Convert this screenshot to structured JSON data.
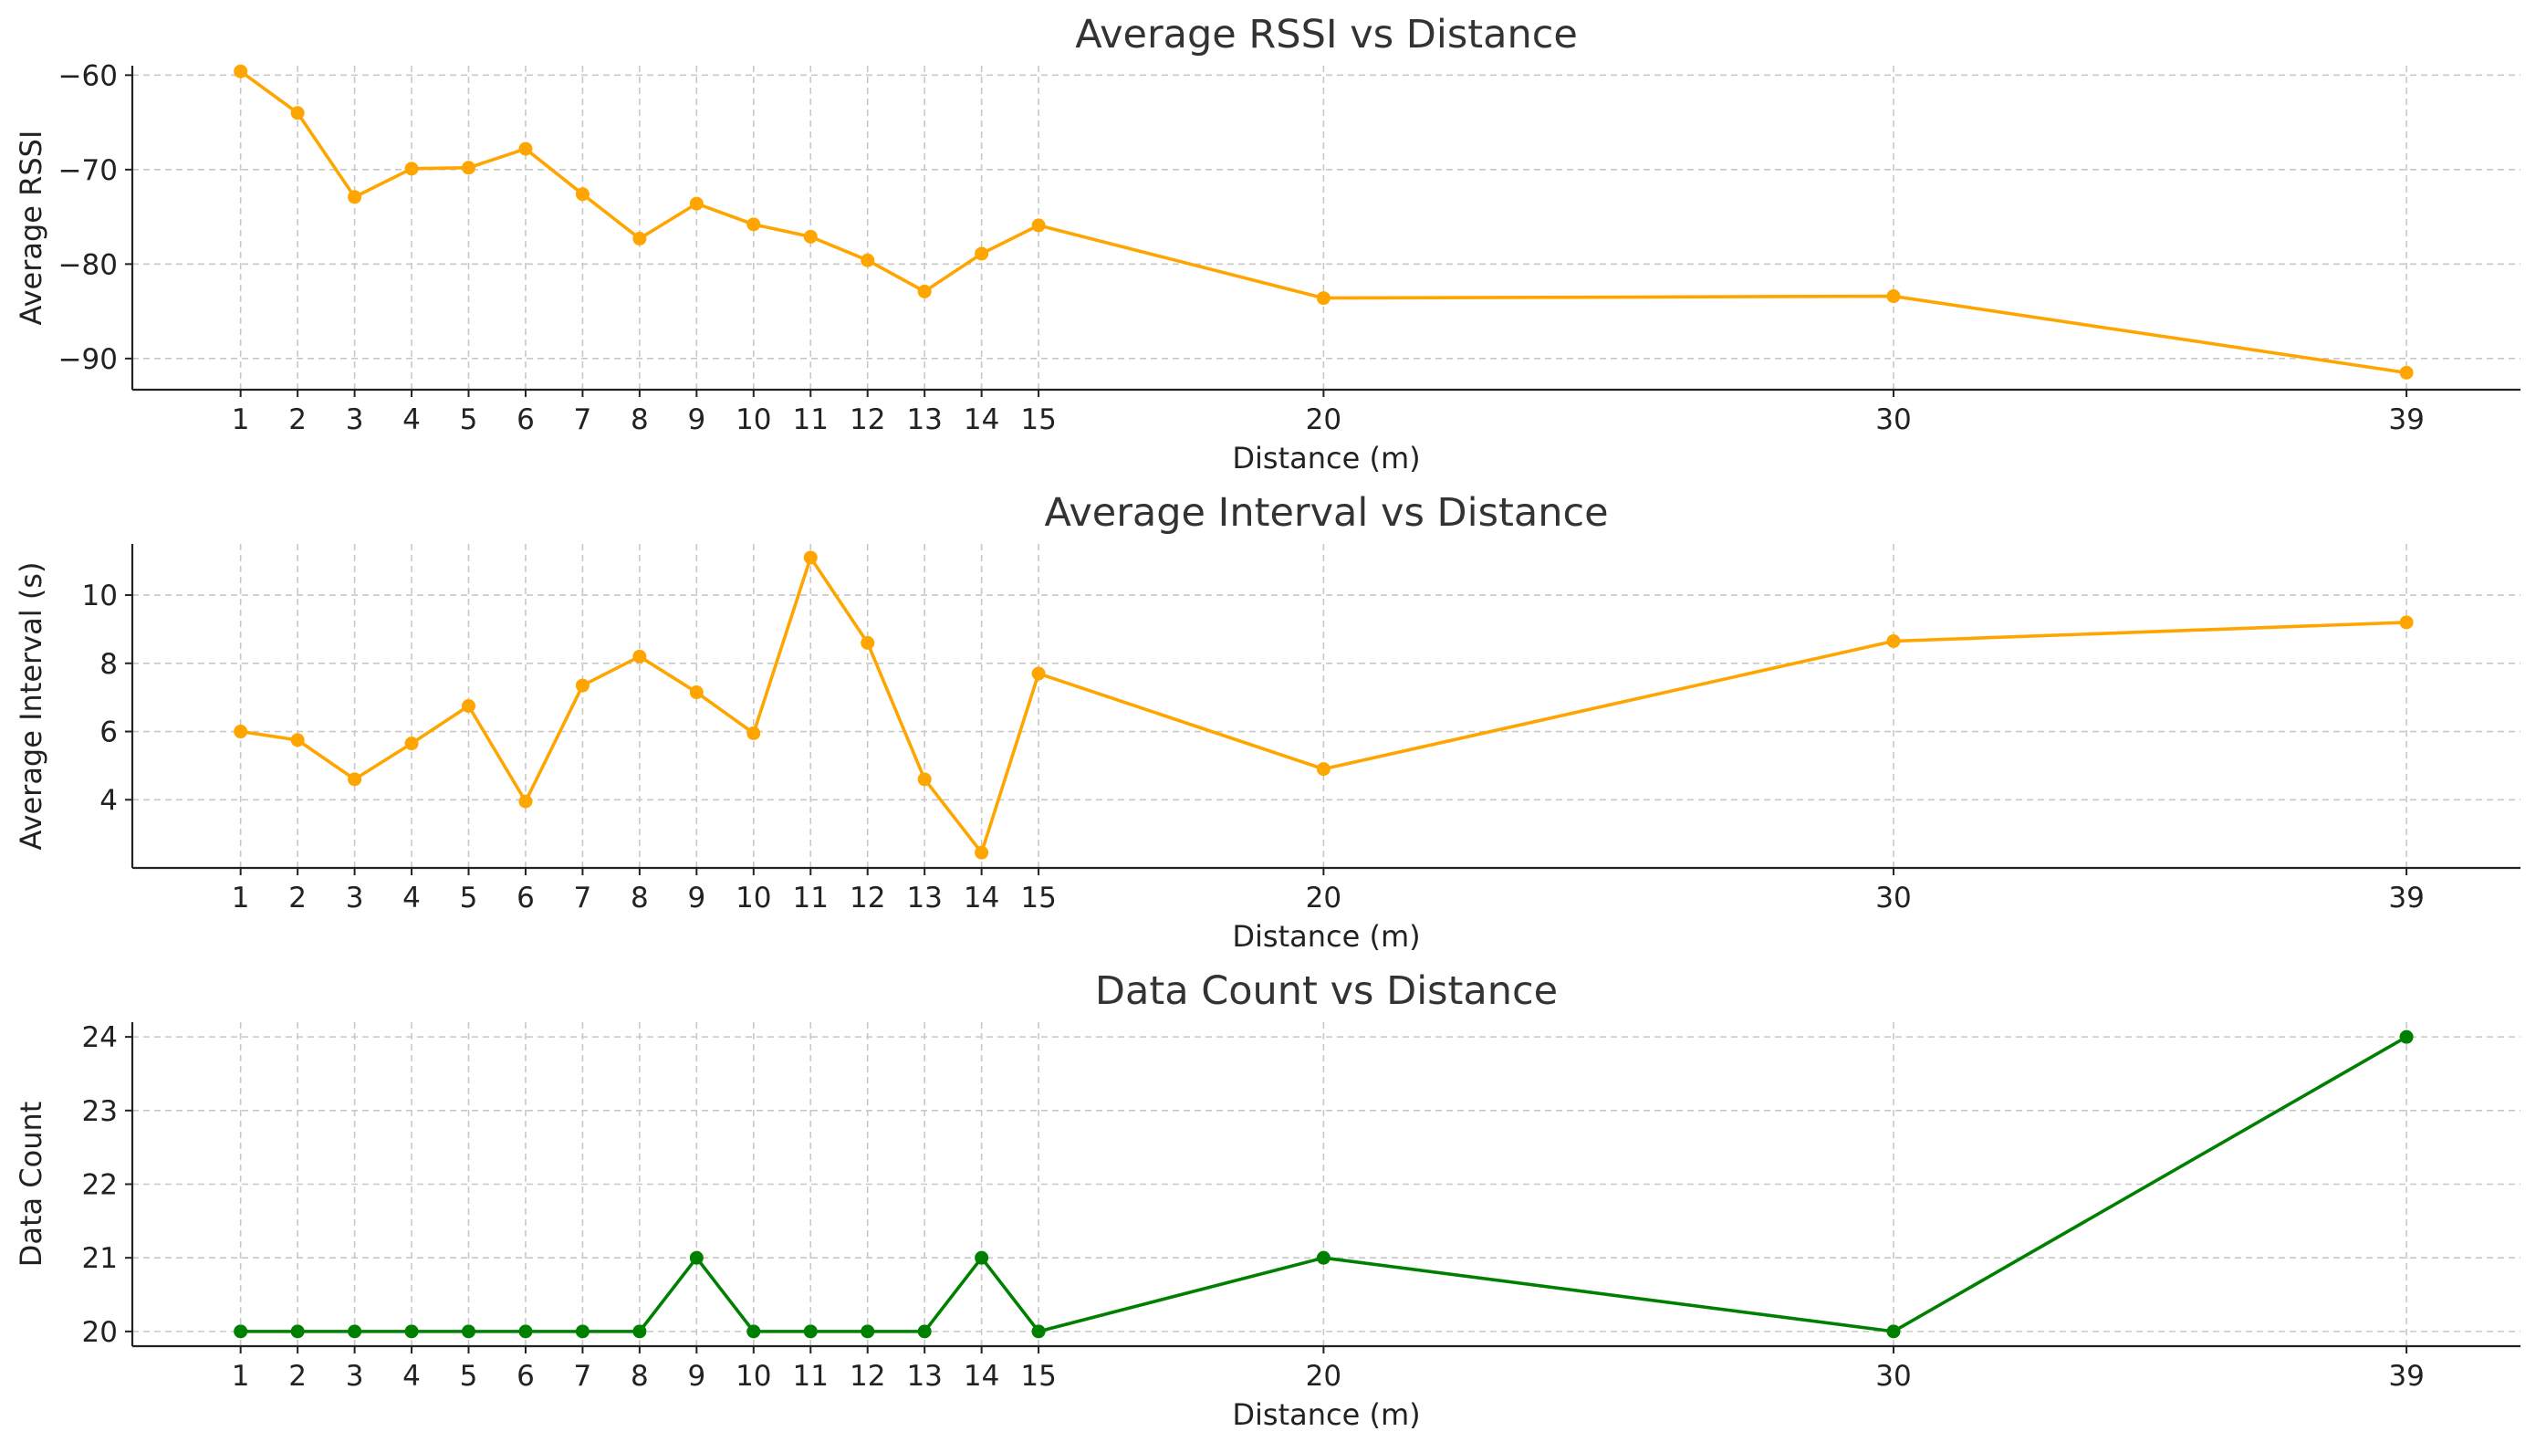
{
  "chart_data": [
    {
      "type": "line",
      "title": "Average RSSI vs Distance",
      "xlabel": "Distance (m)",
      "ylabel": "Average RSSI",
      "xlim": [
        -0.9,
        41.0
      ],
      "ylim": [
        -93.3,
        -59.0
      ],
      "grid": true,
      "x_ticks": [
        1,
        2,
        3,
        4,
        5,
        6,
        7,
        8,
        9,
        10,
        11,
        12,
        13,
        14,
        15,
        20,
        30,
        39
      ],
      "y_ticks": [
        -60,
        -70,
        -80,
        -90
      ],
      "color": "#FFA500",
      "series": [
        {
          "x": [
            1,
            2,
            3,
            4,
            5,
            6,
            7,
            8,
            9,
            10,
            11,
            12,
            13,
            14,
            15,
            20,
            30,
            39
          ],
          "values": [
            -59.6,
            -64.0,
            -72.9,
            -69.9,
            -69.8,
            -67.8,
            -72.6,
            -77.3,
            -73.6,
            -75.8,
            -77.1,
            -79.6,
            -82.9,
            -78.9,
            -75.9,
            -83.6,
            -83.4,
            -91.5
          ]
        }
      ]
    },
    {
      "type": "line",
      "title": "Average Interval vs Distance",
      "xlabel": "Distance (m)",
      "ylabel": "Average Interval (s)",
      "xlim": [
        -0.9,
        41.0
      ],
      "ylim": [
        2.0,
        11.5
      ],
      "grid": true,
      "x_ticks": [
        1,
        2,
        3,
        4,
        5,
        6,
        7,
        8,
        9,
        10,
        11,
        12,
        13,
        14,
        15,
        20,
        30,
        39
      ],
      "y_ticks": [
        4,
        6,
        8,
        10
      ],
      "color": "#FFA500",
      "series": [
        {
          "x": [
            1,
            2,
            3,
            4,
            5,
            6,
            7,
            8,
            9,
            10,
            11,
            12,
            13,
            14,
            15,
            20,
            30,
            39
          ],
          "values": [
            6.0,
            5.75,
            4.6,
            5.65,
            6.75,
            3.95,
            7.35,
            8.2,
            7.15,
            5.95,
            11.1,
            8.6,
            4.6,
            2.45,
            7.7,
            4.9,
            8.65,
            9.2
          ]
        }
      ]
    },
    {
      "type": "line",
      "title": "Data Count vs Distance",
      "xlabel": "Distance (m)",
      "ylabel": "Data Count",
      "xlim": [
        -0.9,
        41.0
      ],
      "ylim": [
        19.8,
        24.2
      ],
      "grid": true,
      "x_ticks": [
        1,
        2,
        3,
        4,
        5,
        6,
        7,
        8,
        9,
        10,
        11,
        12,
        13,
        14,
        15,
        20,
        30,
        39
      ],
      "y_ticks": [
        20,
        21,
        22,
        23,
        24
      ],
      "color": "#008000",
      "series": [
        {
          "x": [
            1,
            2,
            3,
            4,
            5,
            6,
            7,
            8,
            9,
            10,
            11,
            12,
            13,
            14,
            15,
            20,
            30,
            39
          ],
          "values": [
            20,
            20,
            20,
            20,
            20,
            20,
            20,
            20,
            21,
            20,
            20,
            20,
            20,
            21,
            20,
            21,
            20,
            24
          ]
        }
      ]
    }
  ]
}
